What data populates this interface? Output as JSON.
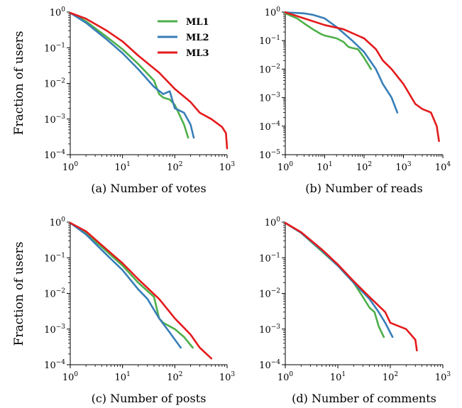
{
  "legend": [
    {
      "name": "ML1",
      "color": "#4daf4a"
    },
    {
      "name": "ML2",
      "color": "#377eb8"
    },
    {
      "name": "ML3",
      "color": "#e41a1c"
    }
  ],
  "ylabel": "Fraction of users",
  "chart_data": [
    {
      "type": "line",
      "caption": "(a) Number of votes",
      "xscale": "log",
      "yscale": "log",
      "xlim": [
        1,
        1000
      ],
      "ylim": [
        0.0001,
        1
      ],
      "xticks": [
        1,
        10,
        100,
        1000
      ],
      "yticks": [
        0.0001,
        0.001,
        0.01,
        0.1,
        1
      ],
      "grid": false,
      "legend_position": "top-right",
      "series": [
        {
          "name": "ML1",
          "x": [
            1,
            2,
            5,
            10,
            20,
            40,
            50,
            60,
            80,
            100,
            150,
            180
          ],
          "y": [
            0.95,
            0.55,
            0.2,
            0.09,
            0.035,
            0.012,
            0.005,
            0.004,
            0.0035,
            0.0025,
            0.0007,
            0.0003
          ]
        },
        {
          "name": "ML2",
          "x": [
            1,
            2,
            5,
            10,
            20,
            40,
            60,
            80,
            100,
            150,
            200,
            230
          ],
          "y": [
            0.95,
            0.5,
            0.17,
            0.07,
            0.025,
            0.008,
            0.005,
            0.006,
            0.002,
            0.0015,
            0.0007,
            0.0003
          ]
        },
        {
          "name": "ML3",
          "x": [
            1,
            2,
            5,
            10,
            20,
            50,
            100,
            200,
            300,
            500,
            800,
            950,
            1000
          ],
          "y": [
            0.95,
            0.65,
            0.3,
            0.15,
            0.06,
            0.02,
            0.007,
            0.003,
            0.0015,
            0.001,
            0.0006,
            0.0004,
            0.00015
          ]
        }
      ]
    },
    {
      "type": "line",
      "caption": "(b) Number of reads",
      "xscale": "log",
      "yscale": "log",
      "xlim": [
        1,
        10000
      ],
      "ylim": [
        1e-05,
        1
      ],
      "xticks": [
        1,
        10,
        100,
        1000,
        10000
      ],
      "yticks": [
        1e-05,
        0.0001,
        0.001,
        0.01,
        0.1,
        1
      ],
      "grid": false,
      "series": [
        {
          "name": "ML1",
          "x": [
            1,
            2,
            3,
            5,
            8,
            10,
            20,
            30,
            40,
            50,
            70,
            100,
            150
          ],
          "y": [
            0.9,
            0.6,
            0.4,
            0.25,
            0.17,
            0.15,
            0.12,
            0.09,
            0.06,
            0.055,
            0.05,
            0.025,
            0.01
          ]
        },
        {
          "name": "ML2",
          "x": [
            1,
            3,
            5,
            10,
            20,
            50,
            100,
            200,
            300,
            500,
            700
          ],
          "y": [
            0.98,
            0.9,
            0.8,
            0.6,
            0.3,
            0.1,
            0.04,
            0.01,
            0.003,
            0.001,
            0.0003
          ]
        },
        {
          "name": "ML3",
          "x": [
            1,
            3,
            10,
            30,
            100,
            200,
            300,
            500,
            1000,
            2000,
            3000,
            5000,
            7000,
            8000
          ],
          "y": [
            0.98,
            0.6,
            0.35,
            0.25,
            0.12,
            0.05,
            0.02,
            0.01,
            0.003,
            0.0006,
            0.0004,
            0.0003,
            0.0001,
            3e-05
          ]
        }
      ]
    },
    {
      "type": "line",
      "caption": "(c) Number of posts",
      "xscale": "log",
      "yscale": "log",
      "xlim": [
        1,
        1000
      ],
      "ylim": [
        0.0001,
        1
      ],
      "xticks": [
        1,
        10,
        100,
        1000
      ],
      "yticks": [
        0.0001,
        0.001,
        0.01,
        0.1,
        1
      ],
      "grid": false,
      "series": [
        {
          "name": "ML1",
          "x": [
            1,
            2,
            5,
            10,
            20,
            40,
            50,
            60,
            100,
            150,
            220
          ],
          "y": [
            0.95,
            0.5,
            0.15,
            0.06,
            0.02,
            0.008,
            0.002,
            0.0015,
            0.001,
            0.0006,
            0.0003
          ]
        },
        {
          "name": "ML2",
          "x": [
            1,
            2,
            5,
            10,
            20,
            30,
            50,
            80,
            130
          ],
          "y": [
            0.95,
            0.45,
            0.12,
            0.045,
            0.013,
            0.007,
            0.002,
            0.0008,
            0.0003
          ]
        },
        {
          "name": "ML3",
          "x": [
            1,
            2,
            5,
            10,
            20,
            50,
            100,
            200,
            300,
            500
          ],
          "y": [
            0.95,
            0.55,
            0.17,
            0.07,
            0.025,
            0.007,
            0.002,
            0.0007,
            0.0003,
            0.00015
          ]
        }
      ]
    },
    {
      "type": "line",
      "caption": "(d) Number of comments",
      "xscale": "log",
      "yscale": "log",
      "xlim": [
        1,
        1000
      ],
      "ylim": [
        0.0001,
        1
      ],
      "xticks": [
        1,
        10,
        100,
        1000
      ],
      "yticks": [
        0.0001,
        0.001,
        0.01,
        0.1,
        1
      ],
      "grid": false,
      "series": [
        {
          "name": "ML1",
          "x": [
            1,
            2,
            5,
            10,
            20,
            30,
            40,
            50,
            60,
            75
          ],
          "y": [
            0.95,
            0.5,
            0.15,
            0.06,
            0.02,
            0.008,
            0.004,
            0.003,
            0.0012,
            0.0006
          ]
        },
        {
          "name": "ML2",
          "x": [
            1,
            2,
            5,
            10,
            20,
            40,
            60,
            80,
            110
          ],
          "y": [
            0.95,
            0.5,
            0.16,
            0.06,
            0.02,
            0.007,
            0.003,
            0.0015,
            0.0006
          ]
        },
        {
          "name": "ML3",
          "x": [
            1,
            2,
            5,
            10,
            20,
            40,
            80,
            100,
            200,
            300,
            320
          ],
          "y": [
            0.95,
            0.52,
            0.17,
            0.065,
            0.022,
            0.008,
            0.003,
            0.0015,
            0.001,
            0.0005,
            0.00025
          ]
        }
      ]
    }
  ]
}
